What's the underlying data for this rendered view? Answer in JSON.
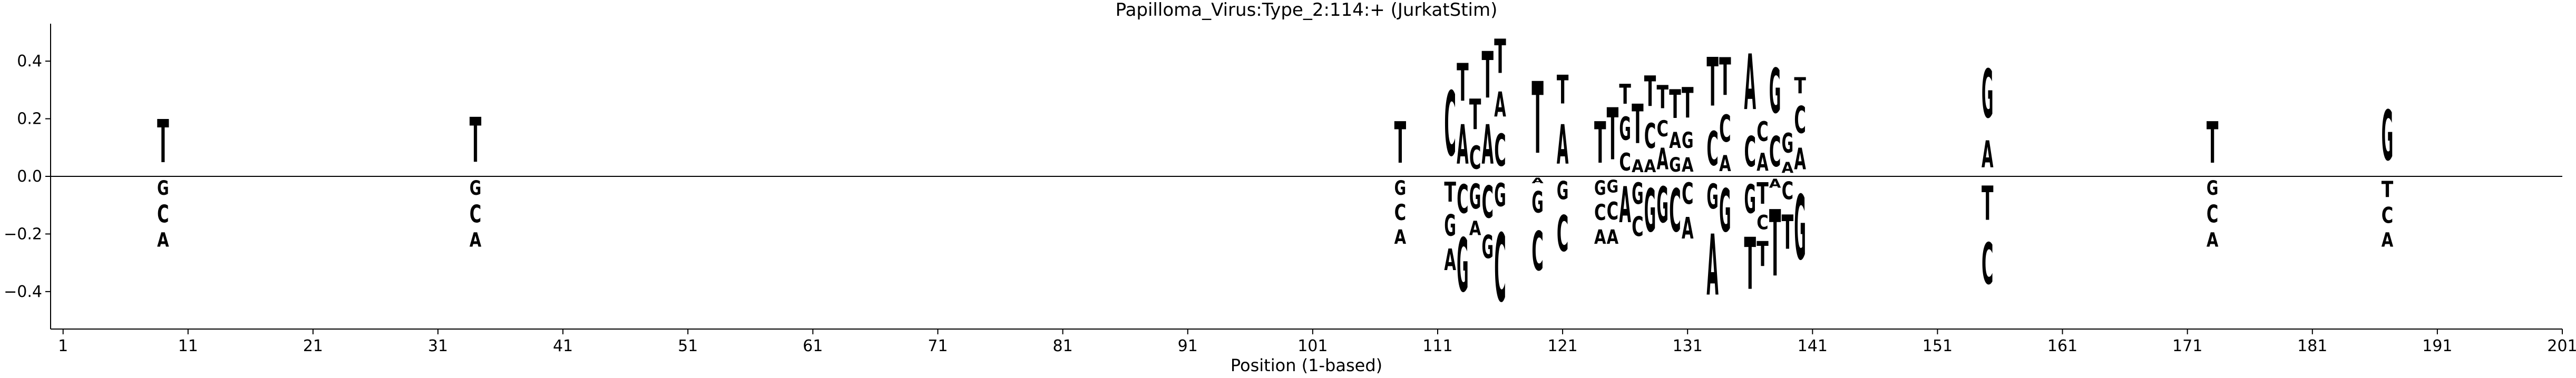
{
  "chart_data": {
    "type": "sequence-logo",
    "title": "Papilloma_Virus:Type_2:114:+  (JurkatStim)",
    "xlabel": "Position (1-based)",
    "ylabel": "",
    "xlim": [
      0,
      201
    ],
    "ylim": [
      -0.53,
      0.53
    ],
    "x_ticks": [
      1,
      11,
      21,
      31,
      41,
      51,
      61,
      71,
      81,
      91,
      101,
      111,
      121,
      131,
      141,
      151,
      161,
      171,
      181,
      191,
      201
    ],
    "y_ticks": [
      -0.4,
      -0.2,
      0.0,
      0.2,
      0.4
    ],
    "y_tick_labels": [
      "−0.4",
      "−0.2",
      "0.0",
      "0.2",
      "0.4"
    ],
    "baseline": 0.0,
    "grid": false,
    "colors": {
      "A": "#008000",
      "C": "#0000ff",
      "G": "#ffa500",
      "T": "#ff0000"
    },
    "positions": [
      {
        "x": 9,
        "letters": [
          [
            "T",
            0.24
          ],
          [
            "G",
            -0.08
          ],
          [
            "C",
            -0.1
          ],
          [
            "A",
            -0.08
          ]
        ]
      },
      {
        "x": 34,
        "letters": [
          [
            "T",
            0.25
          ],
          [
            "G",
            -0.08
          ],
          [
            "C",
            -0.1
          ],
          [
            "A",
            -0.08
          ]
        ]
      },
      {
        "x": 108,
        "letters": [
          [
            "T",
            0.23
          ],
          [
            "G",
            -0.08
          ],
          [
            "C",
            -0.09
          ],
          [
            "A",
            -0.08
          ]
        ]
      },
      {
        "x": 112,
        "letters": [
          [
            "C",
            0.36
          ],
          [
            "T",
            -0.11
          ],
          [
            "G",
            -0.12
          ],
          [
            "A",
            -0.12
          ]
        ]
      },
      {
        "x": 113,
        "letters": [
          [
            "A",
            0.22
          ],
          [
            "T",
            0.21
          ],
          [
            "C",
            -0.16
          ],
          [
            "G",
            -0.3
          ]
        ]
      },
      {
        "x": 114,
        "letters": [
          [
            "C",
            0.13
          ],
          [
            "T",
            0.17
          ],
          [
            "G",
            -0.14
          ],
          [
            "A",
            -0.08
          ]
        ]
      },
      {
        "x": 115,
        "letters": [
          [
            "A",
            0.22
          ],
          [
            "T",
            0.26
          ],
          [
            "C",
            -0.18
          ],
          [
            "G",
            -0.13
          ]
        ]
      },
      {
        "x": 116,
        "letters": [
          [
            "C",
            0.18
          ],
          [
            "A",
            0.14
          ],
          [
            "T",
            0.19
          ],
          [
            "G",
            -0.13
          ],
          [
            "C",
            -0.38
          ]
        ]
      },
      {
        "x": 119,
        "letters": [
          [
            "T",
            0.4
          ],
          [
            "A",
            -0.03
          ],
          [
            "G",
            -0.12
          ],
          [
            "C",
            -0.22
          ]
        ]
      },
      {
        "x": 121,
        "letters": [
          [
            "A",
            0.22
          ],
          [
            "T",
            0.16
          ],
          [
            "G",
            -0.1
          ],
          [
            "C",
            -0.2
          ]
        ]
      },
      {
        "x": 124,
        "letters": [
          [
            "T",
            0.23
          ],
          [
            "G",
            -0.08
          ],
          [
            "C",
            -0.09
          ],
          [
            "A",
            -0.08
          ]
        ]
      },
      {
        "x": 125,
        "letters": [
          [
            "T",
            0.29
          ],
          [
            "G",
            -0.07
          ],
          [
            "C",
            -0.1
          ],
          [
            "A",
            -0.08
          ]
        ]
      },
      {
        "x": 126,
        "letters": [
          [
            "C",
            0.1
          ],
          [
            "G",
            0.13
          ],
          [
            "T",
            0.11
          ],
          [
            "A",
            -0.2
          ]
        ]
      },
      {
        "x": 127,
        "letters": [
          [
            "A",
            0.07
          ],
          [
            "T",
            0.22
          ],
          [
            "G",
            -0.12
          ],
          [
            "C",
            -0.11
          ]
        ]
      },
      {
        "x": 128,
        "letters": [
          [
            "A",
            0.07
          ],
          [
            "C",
            0.14
          ],
          [
            "T",
            0.17
          ],
          [
            "G",
            -0.24
          ]
        ]
      },
      {
        "x": 129,
        "letters": [
          [
            "A",
            0.12
          ],
          [
            "C",
            0.09
          ],
          [
            "T",
            0.13
          ],
          [
            "G",
            -0.2
          ]
        ]
      },
      {
        "x": 130,
        "letters": [
          [
            "G",
            0.08
          ],
          [
            "A",
            0.09
          ],
          [
            "T",
            0.16
          ],
          [
            "C",
            -0.24
          ]
        ]
      },
      {
        "x": 131,
        "letters": [
          [
            "A",
            0.08
          ],
          [
            "G",
            0.09
          ],
          [
            "T",
            0.17
          ],
          [
            "C",
            -0.12
          ],
          [
            "A",
            -0.12
          ]
        ]
      },
      {
        "x": 133,
        "letters": [
          [
            "C",
            0.19
          ],
          [
            "T",
            0.27
          ],
          [
            "G",
            -0.14
          ],
          [
            "A",
            -0.34
          ]
        ]
      },
      {
        "x": 134,
        "letters": [
          [
            "A",
            0.09
          ],
          [
            "C",
            0.15
          ],
          [
            "T",
            0.21
          ],
          [
            "G",
            -0.24
          ]
        ]
      },
      {
        "x": 136,
        "letters": [
          [
            "C",
            0.17
          ],
          [
            "A",
            0.31
          ],
          [
            "G",
            -0.16
          ],
          [
            "T",
            -0.29
          ]
        ]
      },
      {
        "x": 137,
        "letters": [
          [
            "A",
            0.1
          ],
          [
            "C",
            0.11
          ],
          [
            "T",
            -0.12
          ],
          [
            "C",
            -0.08
          ],
          [
            "T",
            -0.14
          ]
        ]
      },
      {
        "x": 138,
        "letters": [
          [
            "C",
            0.17
          ],
          [
            "G",
            0.25
          ],
          [
            "A",
            -0.05
          ],
          [
            "T",
            -0.37
          ]
        ]
      },
      {
        "x": 139,
        "letters": [
          [
            "A",
            0.06
          ],
          [
            "G",
            0.11
          ],
          [
            "C",
            -0.1
          ],
          [
            "T",
            -0.19
          ]
        ]
      },
      {
        "x": 140,
        "letters": [
          [
            "A",
            0.12
          ],
          [
            "C",
            0.15
          ],
          [
            "T",
            0.09
          ],
          [
            "G",
            -0.36
          ]
        ]
      },
      {
        "x": 155,
        "letters": [
          [
            "A",
            0.15
          ],
          [
            "G",
            0.27
          ],
          [
            "T",
            -0.19
          ],
          [
            "C",
            -0.23
          ]
        ]
      },
      {
        "x": 173,
        "letters": [
          [
            "T",
            0.23
          ],
          [
            "G",
            -0.08
          ],
          [
            "C",
            -0.1
          ],
          [
            "A",
            -0.08
          ]
        ]
      },
      {
        "x": 187,
        "letters": [
          [
            "G",
            0.28
          ],
          [
            "T",
            -0.09
          ],
          [
            "C",
            -0.09
          ],
          [
            "A",
            -0.08
          ]
        ]
      }
    ]
  }
}
